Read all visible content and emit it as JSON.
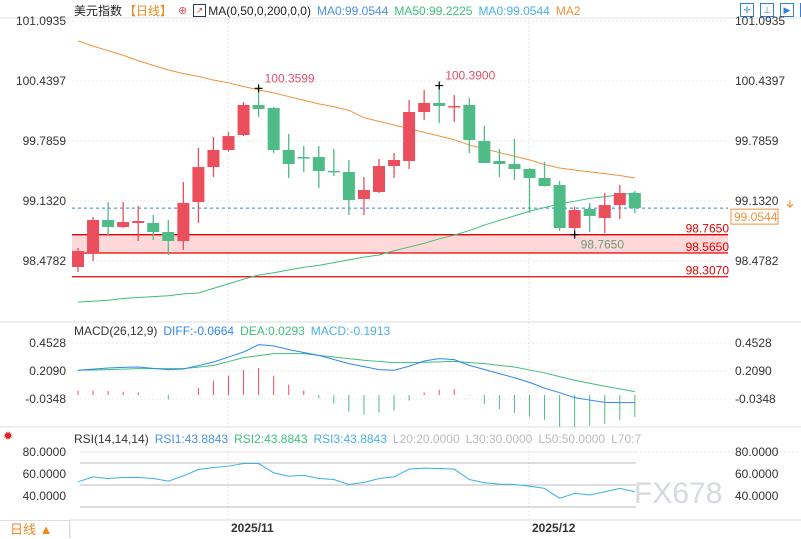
{
  "header": {
    "symbol": "美元指数",
    "timeframe": "【日线】",
    "indicator": "MA(0,50,0,200,0,0)",
    "ma0": "MA0:99.0544",
    "ma50": "MA50:99.2225",
    "ma0b": "MA0:99.0544",
    "ma2": "MA2"
  },
  "colors": {
    "up": "#eb4f5e",
    "down": "#4fbb87",
    "ma2": "#f0923a",
    "ma50": "#3cbf7c",
    "diff": "#2f86f0",
    "dea": "#3cbf7c",
    "rsi": "#3ab0e6",
    "level": "#e60000"
  },
  "price_axis": [
    "101.0935",
    "100.4397",
    "99.7859",
    "99.1320",
    "98.4782"
  ],
  "price_axis_values": [
    101.0935,
    100.4397,
    99.7859,
    99.132,
    98.4782
  ],
  "current_price": {
    "value": 99.0544,
    "label": "99.0544"
  },
  "levels": [
    {
      "value": 98.765,
      "label": "98.7650"
    },
    {
      "value": 98.565,
      "label": "98.5650"
    },
    {
      "value": 98.307,
      "label": "98.3070"
    }
  ],
  "annotations": {
    "high1": "100.3599",
    "high2": "100.3900",
    "low": "98.7650"
  },
  "candles": [
    [
      98.413,
      98.62,
      98.358,
      98.587
    ],
    [
      98.576,
      98.958,
      98.478,
      98.925
    ],
    [
      98.925,
      99.121,
      98.761,
      98.849
    ],
    [
      98.849,
      99.121,
      98.838,
      98.903
    ],
    [
      98.892,
      99.078,
      98.696,
      98.914
    ],
    [
      98.892,
      98.98,
      98.707,
      98.794
    ],
    [
      98.794,
      98.925,
      98.544,
      98.696
    ],
    [
      98.696,
      99.339,
      98.598,
      99.11
    ],
    [
      99.121,
      99.71,
      98.892,
      99.502
    ],
    [
      99.502,
      99.829,
      99.394,
      99.688
    ],
    [
      99.688,
      99.884,
      99.67,
      99.84
    ],
    [
      99.851,
      100.211,
      99.84,
      100.178
    ],
    [
      100.178,
      100.3599,
      100.047,
      100.135
    ],
    [
      100.145,
      100.156,
      99.655,
      99.688
    ],
    [
      99.688,
      99.862,
      99.383,
      99.535
    ],
    [
      99.611,
      99.731,
      99.448,
      99.6
    ],
    [
      99.611,
      99.731,
      99.274,
      99.459
    ],
    [
      99.46,
      99.699,
      99.404,
      99.45
    ],
    [
      99.448,
      99.579,
      98.98,
      99.143
    ],
    [
      99.154,
      99.394,
      98.98,
      99.252
    ],
    [
      99.23,
      99.59,
      99.22,
      99.513
    ],
    [
      99.513,
      99.655,
      99.383,
      99.579
    ],
    [
      99.568,
      100.233,
      99.481,
      100.102
    ],
    [
      100.102,
      100.342,
      100.015,
      100.2
    ],
    [
      100.2,
      100.39,
      99.982,
      100.167
    ],
    [
      100.156,
      100.287,
      99.994,
      100.167
    ],
    [
      100.178,
      100.254,
      99.655,
      99.797
    ],
    [
      99.786,
      99.949,
      99.546,
      99.546
    ],
    [
      99.568,
      99.699,
      99.394,
      99.535
    ],
    [
      99.535,
      99.808,
      99.361,
      99.481
    ],
    [
      99.481,
      99.492,
      99.001,
      99.383
    ],
    [
      99.383,
      99.557,
      99.29,
      99.295
    ],
    [
      99.306,
      99.35,
      98.805,
      98.838
    ],
    [
      98.838,
      99.067,
      98.765,
      99.034
    ],
    [
      99.045,
      99.11,
      98.794,
      98.969
    ],
    [
      98.947,
      99.219,
      98.783,
      99.088
    ],
    [
      99.088,
      99.306,
      98.936,
      99.219
    ],
    [
      99.219,
      99.241,
      99.001,
      99.0544
    ]
  ],
  "ma2": [
    100.876,
    100.82,
    100.77,
    100.72,
    100.66,
    100.61,
    100.56,
    100.52,
    100.49,
    100.45,
    100.42,
    100.38,
    100.342,
    100.31,
    100.27,
    100.23,
    100.19,
    100.16,
    100.12,
    100.04,
    100.0,
    99.96,
    99.92,
    99.88,
    99.84,
    99.8,
    99.743,
    99.7,
    99.66,
    99.62,
    99.58,
    99.53,
    99.492,
    99.47,
    99.45,
    99.43,
    99.41,
    99.383
  ],
  "ma50": [
    98.03,
    98.04,
    98.05,
    98.07,
    98.08,
    98.09,
    98.1,
    98.12,
    98.13,
    98.18,
    98.23,
    98.28,
    98.325,
    98.35,
    98.38,
    98.41,
    98.43,
    98.46,
    98.49,
    98.52,
    98.544,
    98.59,
    98.63,
    98.67,
    98.72,
    98.76,
    98.81,
    98.87,
    98.92,
    98.97,
    99.02,
    99.06,
    99.1,
    99.13,
    99.16,
    99.18,
    99.2,
    99.22
  ],
  "macd": {
    "title": "MACD(26,12,9)",
    "diff_label": "DIFF:-0.0664",
    "dea_label": "DEA:0.0293",
    "macd_label": "MACD:-0.1913",
    "axis": [
      "0.4528",
      "0.2090",
      "-0.0348"
    ],
    "diff": [
      0.215,
      0.225,
      0.235,
      0.24,
      0.244,
      0.232,
      0.221,
      0.226,
      0.256,
      0.287,
      0.33,
      0.374,
      0.438,
      0.427,
      0.395,
      0.37,
      0.345,
      0.309,
      0.273,
      0.247,
      0.221,
      0.215,
      0.25,
      0.296,
      0.316,
      0.308,
      0.258,
      0.222,
      0.186,
      0.15,
      0.11,
      0.06,
      0.02,
      -0.023,
      -0.044,
      -0.064,
      -0.066,
      -0.0664
    ],
    "dea": [
      0.215,
      0.218,
      0.221,
      0.225,
      0.229,
      0.229,
      0.229,
      0.229,
      0.243,
      0.258,
      0.291,
      0.325,
      0.343,
      0.36,
      0.36,
      0.36,
      0.345,
      0.331,
      0.316,
      0.302,
      0.292,
      0.282,
      0.283,
      0.284,
      0.288,
      0.293,
      0.283,
      0.273,
      0.258,
      0.244,
      0.218,
      0.192,
      0.16,
      0.128,
      0.102,
      0.076,
      0.053,
      0.0293
    ],
    "hist": [
      0.038,
      0.038,
      0.035,
      0.029,
      0.023,
      -0.003,
      -0.04,
      0.0,
      0.061,
      0.125,
      0.168,
      0.218,
      0.235,
      0.168,
      0.09,
      0.038,
      -0.029,
      -0.073,
      -0.145,
      -0.171,
      -0.154,
      -0.136,
      -0.049,
      0.023,
      0.046,
      0.052,
      -0.006,
      -0.078,
      -0.122,
      -0.157,
      -0.189,
      -0.218,
      -0.276,
      -0.276,
      -0.267,
      -0.252,
      -0.218,
      -0.1913
    ]
  },
  "rsi": {
    "title": "RSI(14,14,14)",
    "rsi1": "RSI1:43.8843",
    "rsi2": "RSI2:43.8843",
    "rsi3": "RSI3:43.8843",
    "l20": "L20:20.0000",
    "l30": "L30:30.0000",
    "l50": "L50:50.0000",
    "l70": "L70:7",
    "axis": [
      "80.0000",
      "60.0000",
      "40.0000"
    ],
    "values": [
      52.9,
      57.4,
      55.9,
      56.8,
      56.8,
      55.9,
      53.5,
      58.3,
      64.1,
      65.9,
      67.1,
      69.5,
      69.5,
      61.1,
      58.0,
      58.9,
      55.9,
      55.0,
      50.5,
      52.3,
      55.9,
      57.4,
      64.4,
      65.3,
      65.0,
      64.4,
      55.0,
      52.0,
      50.8,
      50.5,
      49.0,
      46.9,
      37.9,
      42.4,
      40.9,
      43.9,
      46.9,
      43.8843
    ]
  },
  "dates": [
    "2025/11",
    "2025/12"
  ],
  "timeframe_button": "日线 ▲",
  "watermark": "FX678"
}
